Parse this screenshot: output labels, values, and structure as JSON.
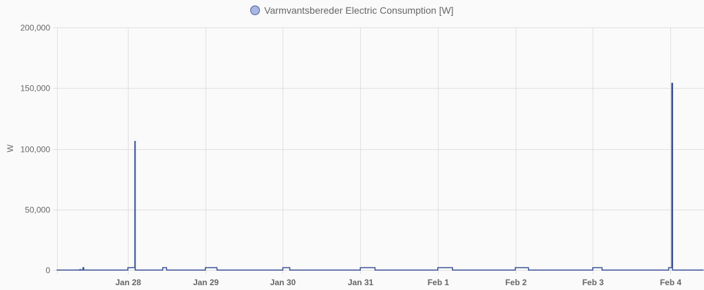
{
  "legend": {
    "label": "Varmvantsbereder Electric Consumption [W]",
    "swatch_fill": "#a7b6e3",
    "swatch_stroke": "#4a5c9c"
  },
  "chart_data": {
    "type": "line",
    "title": "",
    "xlabel": "",
    "ylabel": "W",
    "ylim": [
      0,
      200000
    ],
    "grid": true,
    "legend_position": "top",
    "y_ticks": [
      "0",
      "50,000",
      "100,000",
      "150,000",
      "200,000"
    ],
    "x_ticks": [
      "Jan 28",
      "Jan 29",
      "Jan 30",
      "Jan 31",
      "Feb 1",
      "Feb 2",
      "Feb 3",
      "Feb 4"
    ],
    "line_color": "#3a5296",
    "series": [
      {
        "name": "Varmvantsbereder Electric Consumption [W]",
        "step": true,
        "points_day_offset": [
          [
            -0.92,
            0
          ],
          [
            -0.62,
            0
          ],
          [
            -0.62,
            400
          ],
          [
            -0.61,
            400
          ],
          [
            -0.61,
            0
          ],
          [
            -0.58,
            0
          ],
          [
            -0.58,
            2000
          ],
          [
            -0.57,
            2000
          ],
          [
            -0.57,
            0
          ],
          [
            0.0,
            0
          ],
          [
            0.0,
            2000
          ],
          [
            0.09,
            2000
          ],
          [
            0.09,
            106000
          ],
          [
            0.095,
            106000
          ],
          [
            0.095,
            0
          ],
          [
            0.45,
            0
          ],
          [
            0.45,
            2000
          ],
          [
            0.5,
            2000
          ],
          [
            0.5,
            0
          ],
          [
            1.0,
            0
          ],
          [
            1.0,
            2000
          ],
          [
            1.15,
            2000
          ],
          [
            1.15,
            0
          ],
          [
            2.0,
            0
          ],
          [
            2.0,
            2000
          ],
          [
            2.09,
            2000
          ],
          [
            2.09,
            0
          ],
          [
            3.0,
            0
          ],
          [
            3.0,
            2000
          ],
          [
            3.19,
            2000
          ],
          [
            3.19,
            0
          ],
          [
            4.0,
            0
          ],
          [
            4.0,
            2000
          ],
          [
            4.19,
            2000
          ],
          [
            4.19,
            0
          ],
          [
            5.0,
            0
          ],
          [
            5.0,
            2000
          ],
          [
            5.17,
            2000
          ],
          [
            5.17,
            0
          ],
          [
            6.0,
            0
          ],
          [
            6.0,
            2000
          ],
          [
            6.12,
            2000
          ],
          [
            6.12,
            0
          ],
          [
            6.98,
            0
          ],
          [
            6.98,
            2000
          ],
          [
            7.02,
            2000
          ],
          [
            7.02,
            154000
          ],
          [
            7.03,
            154000
          ],
          [
            7.03,
            0
          ],
          [
            7.43,
            0
          ]
        ]
      }
    ]
  }
}
